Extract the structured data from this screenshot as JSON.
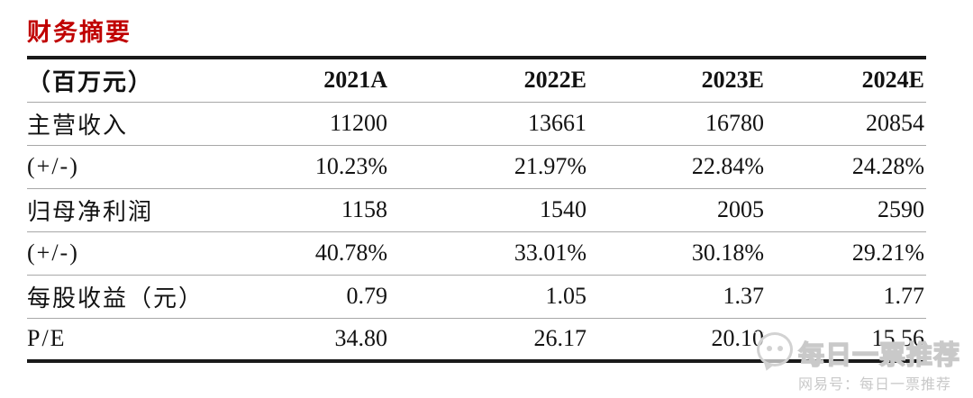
{
  "title": "财务摘要",
  "table": {
    "unit_header": "（百万元）",
    "columns": [
      "2021A",
      "2022E",
      "2023E",
      "2024E"
    ],
    "rows": [
      {
        "label": "主营收入",
        "values": [
          "11200",
          "13661",
          "16780",
          "20854"
        ]
      },
      {
        "label": "(+/-)",
        "values": [
          "10.23%",
          "21.97%",
          "22.84%",
          "24.28%"
        ]
      },
      {
        "label": "归母净利润",
        "values": [
          "1158",
          "1540",
          "2005",
          "2590"
        ]
      },
      {
        "label": "(+/-)",
        "values": [
          "40.78%",
          "33.01%",
          "30.18%",
          "29.21%"
        ]
      },
      {
        "label": "每股收益（元）",
        "values": [
          "0.79",
          "1.05",
          "1.37",
          "1.77"
        ]
      },
      {
        "label": "P/E",
        "values": [
          "34.80",
          "26.17",
          "20.10",
          "15.56"
        ]
      }
    ]
  },
  "watermark": {
    "main_text": "每日一票推荐",
    "sub_text": "网易号：每日一票推荐",
    "icon": "chat-bubble-face-icon"
  },
  "colors": {
    "title_red": "#c00000",
    "body_text": "#121212",
    "thick_border": "#1a1a1a",
    "thin_border": "#a8a8a8",
    "watermark_gray": "#c9c9c9"
  }
}
